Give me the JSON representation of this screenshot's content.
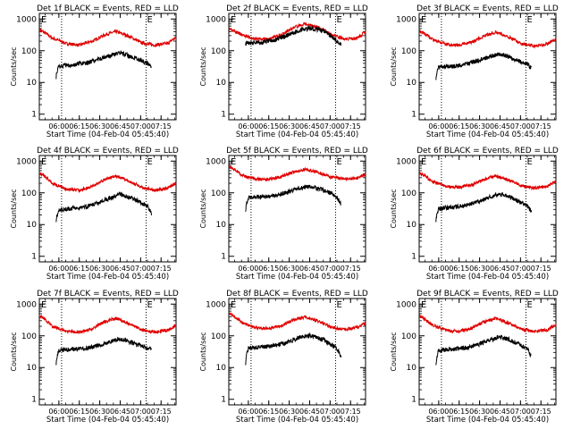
{
  "figure": {
    "layout": "3x3 grid of detector panels",
    "y_label": "Counts/sec",
    "x_label": "Start Time (04-Feb-04 05:45:40)",
    "x_ticks": [
      "06:00",
      "06:15",
      "06:30",
      "06:45",
      "07:00",
      "07:15"
    ],
    "y_ticks": [
      "1",
      "10",
      "100",
      "1000"
    ],
    "marker_letters": [
      "E",
      "E"
    ],
    "colors": {
      "events": "#000000",
      "lld": "#e00000",
      "axes": "#000000",
      "marker_lines": "#000000"
    }
  },
  "chart_data": [
    {
      "type": "line",
      "title": "Det 1f BLACK = Events, RED = LLD",
      "xlabel": "Start Time (04-Feb-04 05:45:40)",
      "ylabel": "Counts/sec",
      "ylim": [
        1,
        1000
      ],
      "yscale": "log",
      "grid": false,
      "x_time_range": [
        "05:45:40",
        "07:26"
      ],
      "vertical_markers": [
        "06:02",
        "07:04"
      ],
      "series": [
        {
          "name": "LLD",
          "color": "red",
          "time": [
            "05:46",
            "05:55",
            "06:05",
            "06:15",
            "06:25",
            "06:35",
            "06:42",
            "06:50",
            "07:00",
            "07:10",
            "07:20",
            "07:26"
          ],
          "values": [
            450,
            250,
            170,
            150,
            200,
            330,
            400,
            300,
            180,
            150,
            170,
            260
          ]
        },
        {
          "name": "Events",
          "color": "black",
          "time": [
            "05:58",
            "06:00",
            "06:10",
            "06:20",
            "06:30",
            "06:40",
            "06:45",
            "06:55",
            "07:00",
            "07:05",
            "07:08"
          ],
          "values": [
            15,
            33,
            36,
            40,
            55,
            75,
            85,
            60,
            50,
            40,
            30
          ]
        }
      ]
    },
    {
      "type": "line",
      "title": "Det 2f BLACK = Events, RED = LLD",
      "xlabel": "Start Time (04-Feb-04 05:45:40)",
      "ylabel": "Counts/sec",
      "ylim": [
        1,
        1000
      ],
      "yscale": "log",
      "grid": false,
      "x_time_range": [
        "05:45:40",
        "07:26"
      ],
      "vertical_markers": [
        "06:02",
        "07:04"
      ],
      "series": [
        {
          "name": "LLD",
          "color": "red",
          "time": [
            "05:46",
            "05:55",
            "06:05",
            "06:15",
            "06:25",
            "06:35",
            "06:42",
            "06:50",
            "07:00",
            "07:10",
            "07:20",
            "07:26"
          ],
          "values": [
            480,
            320,
            230,
            230,
            330,
            560,
            700,
            560,
            330,
            230,
            250,
            380
          ]
        },
        {
          "name": "Events",
          "color": "black",
          "time": [
            "05:58",
            "06:00",
            "06:10",
            "06:20",
            "06:30",
            "06:40",
            "06:45",
            "06:55",
            "07:00",
            "07:05",
            "07:08"
          ],
          "values": [
            170,
            180,
            180,
            220,
            320,
            470,
            520,
            420,
            300,
            190,
            160
          ]
        }
      ]
    },
    {
      "type": "line",
      "title": "Det 3f BLACK = Events, RED = LLD",
      "xlabel": "Start Time (04-Feb-04 05:45:40)",
      "ylabel": "Counts/sec",
      "ylim": [
        1,
        1000
      ],
      "yscale": "log",
      "grid": false,
      "x_time_range": [
        "05:45:40",
        "07:26"
      ],
      "vertical_markers": [
        "06:02",
        "07:04"
      ],
      "series": [
        {
          "name": "LLD",
          "color": "red",
          "time": [
            "05:46",
            "05:55",
            "06:05",
            "06:15",
            "06:25",
            "06:35",
            "06:42",
            "06:50",
            "07:00",
            "07:10",
            "07:20",
            "07:26"
          ],
          "values": [
            420,
            230,
            160,
            150,
            190,
            310,
            380,
            280,
            170,
            140,
            160,
            240
          ]
        },
        {
          "name": "Events",
          "color": "black",
          "time": [
            "05:58",
            "06:00",
            "06:10",
            "06:20",
            "06:30",
            "06:40",
            "06:45",
            "06:55",
            "07:00",
            "07:05",
            "07:08"
          ],
          "values": [
            14,
            30,
            32,
            38,
            50,
            70,
            80,
            55,
            45,
            38,
            28
          ]
        }
      ]
    },
    {
      "type": "line",
      "title": "Det 4f BLACK = Events, RED = LLD",
      "xlabel": "Start Time (04-Feb-04 05:45:40)",
      "ylabel": "Counts/sec",
      "ylim": [
        1,
        1000
      ],
      "yscale": "log",
      "grid": false,
      "x_time_range": [
        "05:45:40",
        "07:26"
      ],
      "vertical_markers": [
        "06:02",
        "07:04"
      ],
      "series": [
        {
          "name": "LLD",
          "color": "red",
          "time": [
            "05:46",
            "05:55",
            "06:05",
            "06:15",
            "06:25",
            "06:35",
            "06:42",
            "06:50",
            "07:00",
            "07:10",
            "07:20",
            "07:26"
          ],
          "values": [
            420,
            200,
            130,
            120,
            160,
            280,
            340,
            250,
            150,
            120,
            140,
            200
          ]
        },
        {
          "name": "Events",
          "color": "black",
          "time": [
            "05:58",
            "06:00",
            "06:10",
            "06:20",
            "06:30",
            "06:40",
            "06:45",
            "06:55",
            "07:00",
            "07:05",
            "07:08"
          ],
          "values": [
            14,
            28,
            32,
            35,
            50,
            75,
            90,
            62,
            50,
            38,
            22
          ]
        }
      ]
    },
    {
      "type": "line",
      "title": "Det 5f BLACK = Events, RED = LLD",
      "xlabel": "Start Time (04-Feb-04 05:45:40)",
      "ylabel": "Counts/sec",
      "ylim": [
        1,
        1000
      ],
      "yscale": "log",
      "grid": false,
      "x_time_range": [
        "05:45:40",
        "07:26"
      ],
      "vertical_markers": [
        "06:02",
        "07:04"
      ],
      "series": [
        {
          "name": "LLD",
          "color": "red",
          "time": [
            "05:46",
            "05:55",
            "06:05",
            "06:15",
            "06:25",
            "06:35",
            "06:42",
            "06:50",
            "07:00",
            "07:10",
            "07:20",
            "07:26"
          ],
          "values": [
            700,
            350,
            270,
            270,
            330,
            480,
            550,
            450,
            320,
            270,
            290,
            380
          ]
        },
        {
          "name": "Events",
          "color": "black",
          "time": [
            "05:58",
            "06:00",
            "06:10",
            "06:20",
            "06:30",
            "06:40",
            "06:45",
            "06:55",
            "07:00",
            "07:05",
            "07:08"
          ],
          "values": [
            30,
            70,
            75,
            80,
            110,
            145,
            160,
            120,
            100,
            70,
            45
          ]
        }
      ]
    },
    {
      "type": "line",
      "title": "Det 6f BLACK = Events, RED = LLD",
      "xlabel": "Start Time (04-Feb-04 05:45:40)",
      "ylabel": "Counts/sec",
      "ylim": [
        1,
        1000
      ],
      "yscale": "log",
      "grid": false,
      "x_time_range": [
        "05:45:40",
        "07:26"
      ],
      "vertical_markers": [
        "06:02",
        "07:04"
      ],
      "series": [
        {
          "name": "LLD",
          "color": "red",
          "time": [
            "05:46",
            "05:55",
            "06:05",
            "06:15",
            "06:25",
            "06:35",
            "06:42",
            "06:50",
            "07:00",
            "07:10",
            "07:20",
            "07:26"
          ],
          "values": [
            420,
            230,
            160,
            150,
            180,
            280,
            340,
            260,
            170,
            140,
            160,
            230
          ]
        },
        {
          "name": "Events",
          "color": "black",
          "time": [
            "05:58",
            "06:00",
            "06:10",
            "06:20",
            "06:30",
            "06:40",
            "06:45",
            "06:55",
            "07:00",
            "07:05",
            "07:08"
          ],
          "values": [
            14,
            32,
            35,
            40,
            55,
            80,
            90,
            65,
            50,
            38,
            25
          ]
        }
      ]
    },
    {
      "type": "line",
      "title": "Det 7f BLACK = Events, RED = LLD",
      "xlabel": "Start Time (04-Feb-04 05:45:40)",
      "ylabel": "Counts/sec",
      "ylim": [
        1,
        1000
      ],
      "yscale": "log",
      "grid": false,
      "x_time_range": [
        "05:45:40",
        "07:26"
      ],
      "vertical_markers": [
        "06:02",
        "07:04"
      ],
      "series": [
        {
          "name": "LLD",
          "color": "red",
          "time": [
            "05:46",
            "05:55",
            "06:05",
            "06:15",
            "06:25",
            "06:35",
            "06:42",
            "06:50",
            "07:00",
            "07:10",
            "07:20",
            "07:26"
          ],
          "values": [
            420,
            200,
            140,
            130,
            170,
            290,
            350,
            260,
            160,
            130,
            150,
            210
          ]
        },
        {
          "name": "Events",
          "color": "black",
          "time": [
            "05:58",
            "06:00",
            "06:10",
            "06:20",
            "06:30",
            "06:40",
            "06:45",
            "06:55",
            "07:00",
            "07:05",
            "07:08"
          ],
          "values": [
            14,
            35,
            38,
            40,
            50,
            70,
            78,
            58,
            48,
            42,
            38
          ]
        }
      ]
    },
    {
      "type": "line",
      "title": "Det 8f BLACK = Events, RED = LLD",
      "xlabel": "Start Time (04-Feb-04 05:45:40)",
      "ylabel": "Counts/sec",
      "ylim": [
        1,
        1000
      ],
      "yscale": "log",
      "grid": false,
      "x_time_range": [
        "05:45:40",
        "07:26"
      ],
      "vertical_markers": [
        "06:02",
        "07:04"
      ],
      "series": [
        {
          "name": "LLD",
          "color": "red",
          "time": [
            "05:46",
            "05:55",
            "06:05",
            "06:15",
            "06:25",
            "06:35",
            "06:42",
            "06:50",
            "07:00",
            "07:10",
            "07:20",
            "07:26"
          ],
          "values": [
            520,
            260,
            180,
            170,
            210,
            330,
            390,
            300,
            190,
            160,
            180,
            250
          ]
        },
        {
          "name": "Events",
          "color": "black",
          "time": [
            "05:58",
            "06:00",
            "06:10",
            "06:20",
            "06:30",
            "06:40",
            "06:45",
            "06:55",
            "07:00",
            "07:05",
            "07:08"
          ],
          "values": [
            14,
            40,
            45,
            50,
            65,
            95,
            105,
            75,
            55,
            40,
            22
          ]
        }
      ]
    },
    {
      "type": "line",
      "title": "Det 9f BLACK = Events, RED = LLD",
      "xlabel": "Start Time (04-Feb-04 05:45:40)",
      "ylabel": "Counts/sec",
      "ylim": [
        1,
        1000
      ],
      "yscale": "log",
      "grid": false,
      "x_time_range": [
        "05:45:40",
        "07:26"
      ],
      "vertical_markers": [
        "06:02",
        "07:04"
      ],
      "series": [
        {
          "name": "LLD",
          "color": "red",
          "time": [
            "05:46",
            "05:55",
            "06:05",
            "06:15",
            "06:25",
            "06:35",
            "06:42",
            "06:50",
            "07:00",
            "07:10",
            "07:20",
            "07:26"
          ],
          "values": [
            420,
            220,
            150,
            140,
            175,
            290,
            350,
            260,
            165,
            135,
            155,
            220
          ]
        },
        {
          "name": "Events",
          "color": "black",
          "time": [
            "05:58",
            "06:00",
            "06:10",
            "06:20",
            "06:30",
            "06:40",
            "06:45",
            "06:55",
            "07:00",
            "07:05",
            "07:08"
          ],
          "values": [
            14,
            35,
            38,
            42,
            55,
            80,
            95,
            65,
            50,
            38,
            22
          ]
        }
      ]
    }
  ]
}
